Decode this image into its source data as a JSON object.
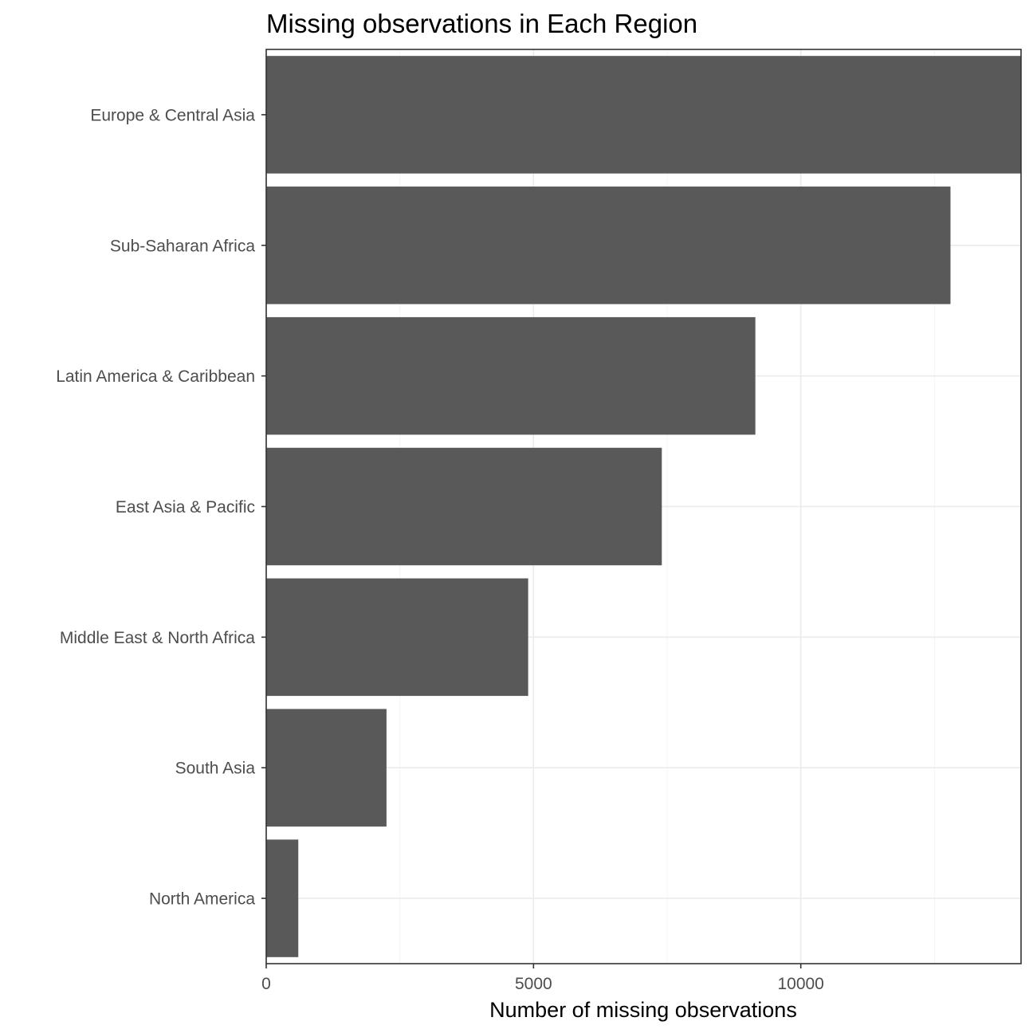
{
  "chart_data": {
    "type": "bar",
    "orientation": "horizontal",
    "title": "Missing observations in Each Region",
    "xlabel": "Number of missing observations",
    "ylabel": "",
    "categories": [
      "Europe & Central Asia",
      "Sub-Saharan Africa",
      "Latin America & Caribbean",
      "East Asia & Pacific",
      "Middle East & North Africa",
      "South Asia",
      "North America"
    ],
    "values": [
      14120,
      12800,
      9150,
      7400,
      4900,
      2250,
      600
    ],
    "xlim": [
      0,
      14120
    ],
    "x_ticks": [
      0,
      5000,
      10000
    ],
    "x_tick_labels": [
      "0",
      "5000",
      "10000"
    ],
    "x_minor_ticks": [
      2500,
      7500,
      12500
    ],
    "grid": true,
    "legend": "none",
    "bar_color": "#595959"
  }
}
